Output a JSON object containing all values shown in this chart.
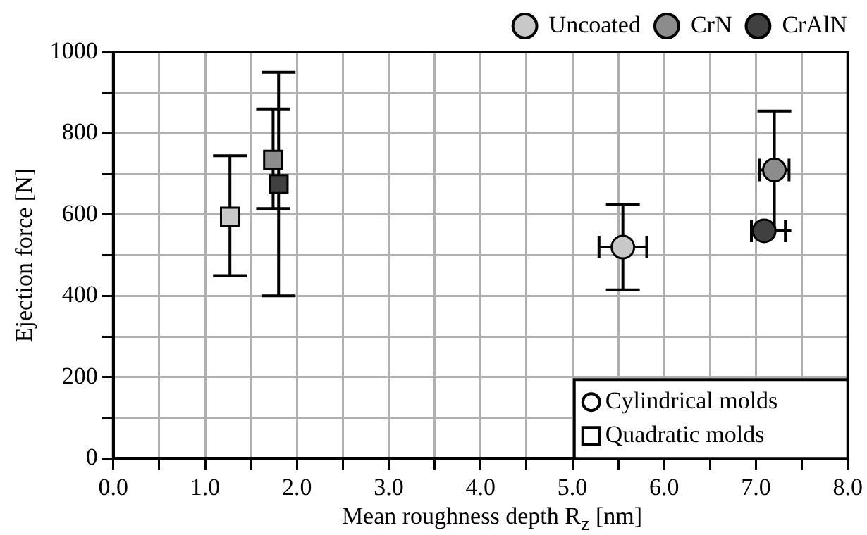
{
  "chart_data": {
    "type": "scatter",
    "xlabel": "Mean roughness depth R$_{z}$ [nm]",
    "ylabel": "Ejection force [N]",
    "xlim": [
      0,
      8
    ],
    "ylim": [
      0,
      1000
    ],
    "xticks": [
      {
        "value": 0,
        "label": "0.0"
      },
      {
        "value": 0.5,
        "label": null
      },
      {
        "value": 1,
        "label": "1.0"
      },
      {
        "value": 1.5,
        "label": null
      },
      {
        "value": 2,
        "label": "2.0"
      },
      {
        "value": 2.5,
        "label": null
      },
      {
        "value": 3,
        "label": "3.0"
      },
      {
        "value": 3.5,
        "label": null
      },
      {
        "value": 4,
        "label": "4.0"
      },
      {
        "value": 4.5,
        "label": null
      },
      {
        "value": 5,
        "label": "5.0"
      },
      {
        "value": 5.5,
        "label": null
      },
      {
        "value": 6,
        "label": "6.0"
      },
      {
        "value": 6.5,
        "label": null
      },
      {
        "value": 7,
        "label": "7.0"
      },
      {
        "value": 7.5,
        "label": null
      },
      {
        "value": 8,
        "label": "8.0"
      }
    ],
    "yticks": [
      0,
      {
        "value": 100,
        "label": null
      },
      200,
      {
        "value": 300,
        "label": null
      },
      400,
      {
        "value": 500,
        "label": null
      },
      600,
      {
        "value": 700,
        "label": null
      },
      800,
      {
        "value": 900,
        "label": null
      },
      1000
    ],
    "grid": true,
    "legend": "top right",
    "series": [
      {
        "name": "Uncoated",
        "color": "#c8c8c8",
        "marker": "circle",
        "x": [
          5.55
        ],
        "values": [
          520
        ],
        "errors": [
          [
            415,
            625
          ]
        ],
        "xerrors": [
          0.26
        ]
      },
      {
        "name": "CrN",
        "color": "#8c8c8c",
        "marker": "circle",
        "x": [
          7.2
        ],
        "values": [
          710
        ],
        "errors": [
          [
            560,
            855
          ]
        ],
        "xerrors": [
          0.16
        ]
      },
      {
        "name": "CrAlN",
        "color": "#404040",
        "marker": "circle",
        "x": [
          7.09
        ],
        "values": [
          560
        ],
        "errors": [
          null
        ],
        "xerrors": [
          [
            6.95,
            7.32
          ]
        ]
      },
      {
        "color": "#c8c8c8",
        "marker": "square",
        "x": [
          1.27
        ],
        "values": [
          595
        ],
        "errors": [
          [
            450,
            745
          ]
        ]
      },
      {
        "color": "#8c8c8c",
        "marker": "square",
        "x": [
          1.74
        ],
        "values": [
          735
        ],
        "errors": [
          [
            615,
            860
          ]
        ]
      },
      {
        "color": "#404040",
        "marker": "square",
        "x": [
          1.8
        ],
        "values": [
          675
        ],
        "errors": [
          [
            400,
            950
          ]
        ]
      },
      {
        "name": "Cylindrical molds",
        "color": "#ffffff",
        "marker": "circle"
      },
      {
        "name": "Quadratic molds",
        "color": "#ffffff",
        "marker": "square"
      }
    ]
  }
}
